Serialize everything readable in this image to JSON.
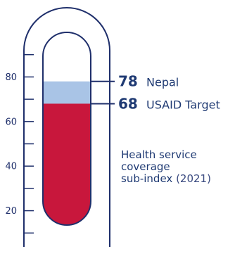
{
  "chart_data": {
    "type": "thermometer",
    "ylim": [
      0,
      100
    ],
    "tick_labels": [
      "20",
      "40",
      "60",
      "80"
    ],
    "series": [
      {
        "name": "Nepal",
        "value": 78,
        "color": "#a9c4e6"
      },
      {
        "name": "USAID Target",
        "value": 68,
        "color": "#c8173c"
      }
    ],
    "caption": {
      "line1": "Health service",
      "line2": "coverage",
      "line3": "sub-index",
      "year": "(2021)"
    },
    "colors": {
      "outline": "#1f2f6b",
      "text": "#1f3a73"
    }
  }
}
